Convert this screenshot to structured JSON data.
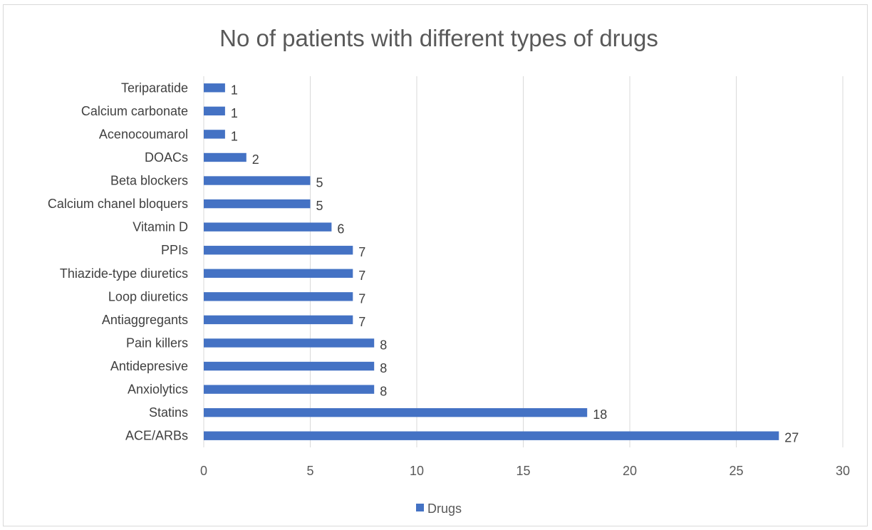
{
  "chart_data": {
    "type": "bar",
    "orientation": "horizontal",
    "title": "No of patients with different types of drugs",
    "xlabel": "",
    "ylabel": "",
    "categories": [
      "ACE/ARBs",
      "Statins",
      "Anxiolytics",
      "Antidepresive",
      "Pain killers",
      "Antiaggregants",
      "Loop diuretics",
      "Thiazide-type diuretics",
      "PPIs",
      "Vitamin D",
      "Calcium chanel bloquers",
      "Beta blockers",
      "DOACs",
      "Acenocoumarol",
      "Calcium carbonate",
      "Teriparatide"
    ],
    "series": [
      {
        "name": "Drugs",
        "values": [
          27,
          18,
          8,
          8,
          8,
          7,
          7,
          7,
          7,
          6,
          5,
          5,
          2,
          1,
          1,
          1
        ]
      }
    ],
    "xlim": [
      0,
      30
    ],
    "xticks": [
      0,
      5,
      10,
      15,
      20,
      25,
      30
    ],
    "grid": true,
    "data_labels": true,
    "legend": "bottom",
    "colors": {
      "bar": "#4472c4",
      "grid": "#d9d9d9",
      "text": "#595959"
    }
  }
}
